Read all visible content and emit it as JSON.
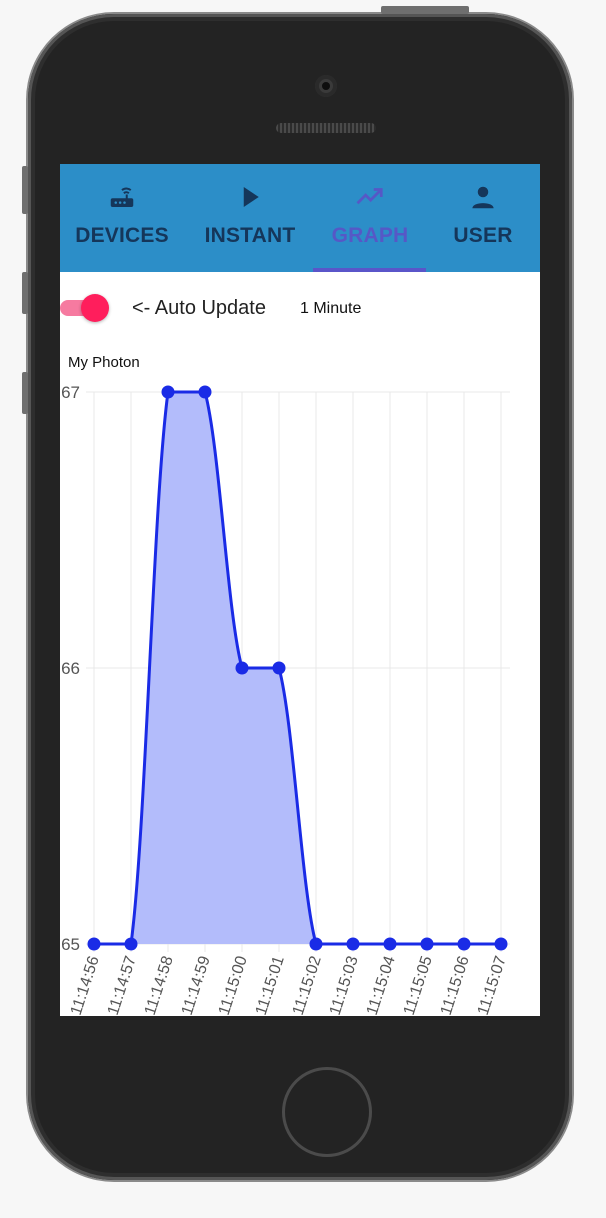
{
  "nav": {
    "tabs": [
      {
        "label": "DEVICES",
        "icon": "router-icon"
      },
      {
        "label": "INSTANT",
        "icon": "play-icon"
      },
      {
        "label": "GRAPH",
        "icon": "trending-up-icon"
      },
      {
        "label": "USER",
        "icon": "person-icon"
      }
    ],
    "active_tab": "GRAPH"
  },
  "controls": {
    "auto_update_label": "<- Auto Update",
    "auto_update_on": true,
    "interval_label": "1 Minute"
  },
  "colors": {
    "nav_bg": "#2c8ec8",
    "tab_text": "#15365a",
    "tab_active": "#5658c6",
    "toggle_knob": "#ff1e5c",
    "toggle_track": "#f67aa0",
    "series_line": "#1a2be6",
    "series_fill": "#b3bcfb"
  },
  "chart_data": {
    "type": "area",
    "title": "My Photon",
    "x": [
      "11:14:56",
      "11:14:57",
      "11:14:58",
      "11:14:59",
      "11:15:00",
      "11:15:01",
      "11:15:02",
      "11:15:03",
      "11:15:04",
      "11:15:05",
      "11:15:06",
      "11:15:07"
    ],
    "series": [
      {
        "name": "My Photon",
        "values": [
          65,
          65,
          67,
          67,
          66,
          66,
          65,
          65,
          65,
          65,
          65,
          65
        ]
      }
    ],
    "ylim": [
      65,
      67
    ],
    "yticks": [
      "65",
      "66",
      "67"
    ],
    "grid": true,
    "xlabel": "",
    "ylabel": ""
  }
}
